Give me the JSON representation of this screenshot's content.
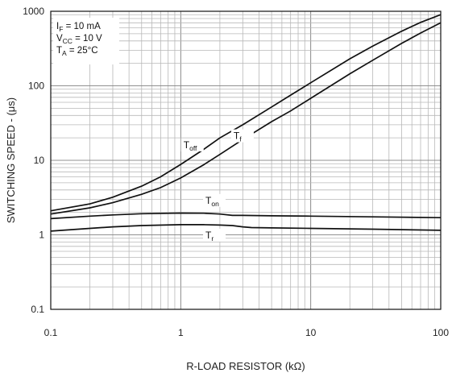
{
  "chart_data": {
    "type": "line",
    "title": "",
    "xlabel": "R-LOAD RESISTOR (kΩ)",
    "ylabel": "SWITCHING SPEED - (μs)",
    "x_scale": "log",
    "y_scale": "log",
    "xlim": [
      0.1,
      100
    ],
    "ylim": [
      0.1,
      1000
    ],
    "grid": true,
    "x_ticks": [
      "0.1",
      "1",
      "10",
      "100"
    ],
    "y_ticks": [
      "0.1",
      "1",
      "10",
      "100",
      "1000"
    ],
    "conditions": {
      "if_main": "I",
      "if_sub": "F",
      "if_rest": " = 10 mA",
      "vcc_main": "V",
      "vcc_sub": "CC",
      "vcc_rest": " = 10 V",
      "ta_main": "T",
      "ta_sub": "A",
      "ta_rest": " = 25°C"
    },
    "series": [
      {
        "main": "T",
        "sub": "off",
        "x": [
          0.1,
          0.2,
          0.3,
          0.5,
          0.7,
          1,
          1.5,
          2,
          3,
          5,
          7,
          10,
          20,
          30,
          50,
          70,
          100
        ],
        "y": [
          2.1,
          2.6,
          3.2,
          4.5,
          6.0,
          8.8,
          14,
          20,
          30,
          52,
          75,
          110,
          230,
          340,
          540,
          710,
          900
        ]
      },
      {
        "main": "T",
        "sub": "f",
        "x": [
          0.1,
          0.2,
          0.3,
          0.5,
          0.7,
          1,
          1.5,
          2,
          3,
          5,
          7,
          10,
          20,
          30,
          50,
          70,
          100
        ],
        "y": [
          1.9,
          2.3,
          2.7,
          3.5,
          4.3,
          5.8,
          8.7,
          12,
          19,
          33,
          46,
          68,
          145,
          220,
          370,
          510,
          700
        ]
      },
      {
        "main": "T",
        "sub": "on",
        "x": [
          0.1,
          0.2,
          0.3,
          0.5,
          1,
          1.5,
          2,
          2.5,
          3,
          5,
          10,
          30,
          100
        ],
        "y": [
          1.65,
          1.78,
          1.85,
          1.92,
          1.96,
          1.95,
          1.9,
          1.82,
          1.82,
          1.8,
          1.78,
          1.74,
          1.7
        ]
      },
      {
        "main": "T",
        "sub": "r",
        "x": [
          0.1,
          0.2,
          0.3,
          0.5,
          1,
          1.5,
          2,
          2.5,
          3,
          3.5,
          5,
          10,
          30,
          100
        ],
        "y": [
          1.12,
          1.22,
          1.28,
          1.33,
          1.37,
          1.37,
          1.35,
          1.33,
          1.28,
          1.25,
          1.24,
          1.22,
          1.19,
          1.15
        ]
      }
    ]
  }
}
